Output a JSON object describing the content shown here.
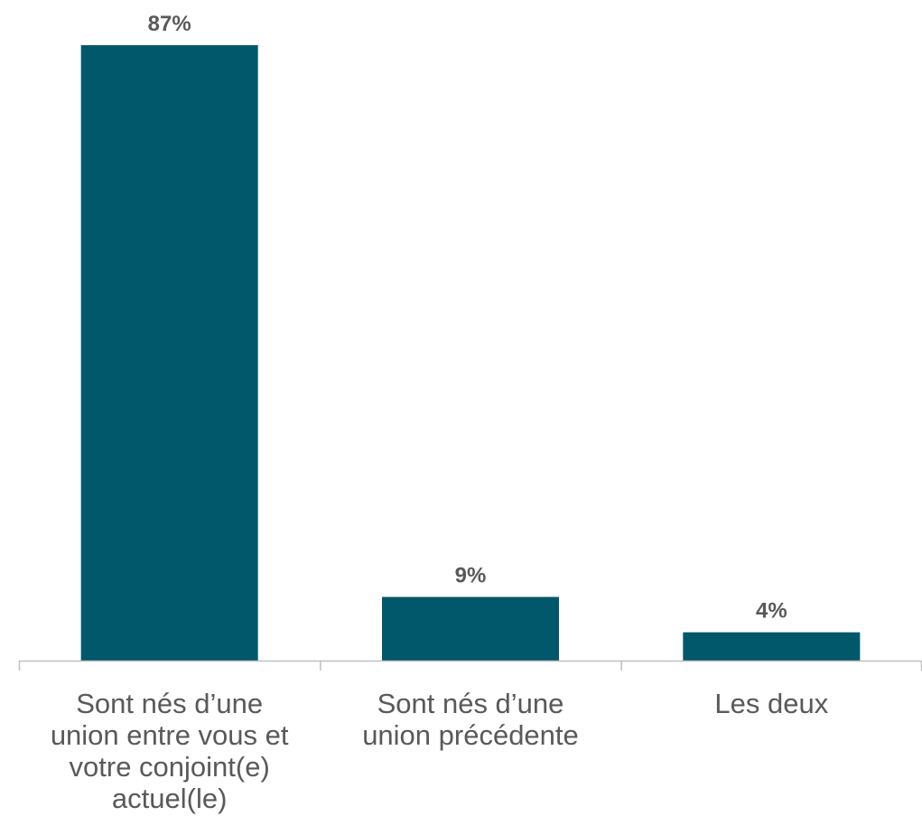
{
  "chart_data": {
    "type": "bar",
    "categories": [
      "Sont nés d’une\nunion entre vous et\nvotre conjoint(e)\nactuel(le)",
      "Sont nés d’une\nunion précédente",
      "Les deux"
    ],
    "values": [
      87,
      9,
      4
    ],
    "data_labels": [
      "87%",
      "9%",
      "4%"
    ],
    "ylim": [
      0,
      87
    ],
    "title": "",
    "xlabel": "",
    "ylabel": "",
    "grid": false,
    "legend": "none",
    "colors": {
      "bar": "#02586B",
      "data_label": "#595959",
      "category_label": "#595959",
      "axis": "#BFBFBF"
    }
  }
}
